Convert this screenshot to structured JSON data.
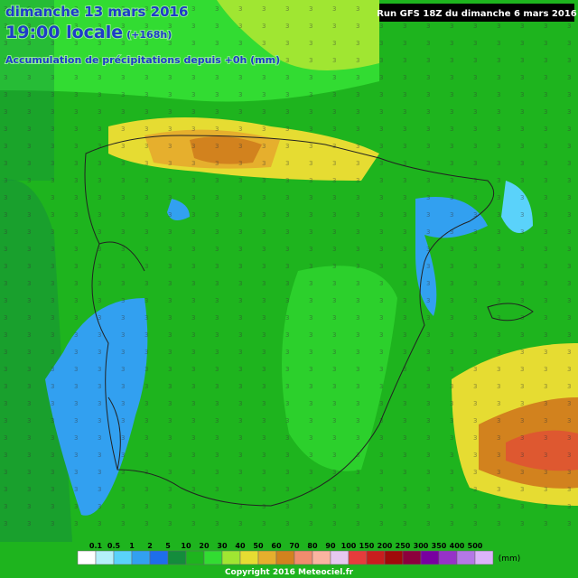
{
  "header": {
    "date": "dimanche 13 mars 2016",
    "time": "19:00 locale",
    "lead": "(+168h)",
    "subtitle": "Accumulation de précipitations depuis +0h (mm)",
    "run": "Run GFS 18Z du dimanche 6 mars 2016"
  },
  "legend": {
    "labels": [
      "0.1",
      "0.5",
      "1",
      "2",
      "5",
      "10",
      "20",
      "30",
      "40",
      "50",
      "60",
      "70",
      "80",
      "90",
      "100",
      "150",
      "200",
      "250",
      "300",
      "350",
      "400",
      "500"
    ],
    "colors": [
      "#ffffff",
      "#b4f0fa",
      "#5ad2fa",
      "#32a0f0",
      "#1e6eeb",
      "#148c3c",
      "#1eb41e",
      "#32dc32",
      "#a0e632",
      "#e6dc32",
      "#e6af2d",
      "#d2821e",
      "#f08c6e",
      "#fab4a0",
      "#e6c8f0",
      "#e63c3c",
      "#c81e1e",
      "#a00a0a",
      "#8c003c",
      "#7800a0",
      "#9632c8",
      "#b478e6",
      "#dcb4fa"
    ],
    "unit": "(mm)"
  },
  "footer": {
    "copyright": "Copyright 2016 Meteociel.fr"
  }
}
